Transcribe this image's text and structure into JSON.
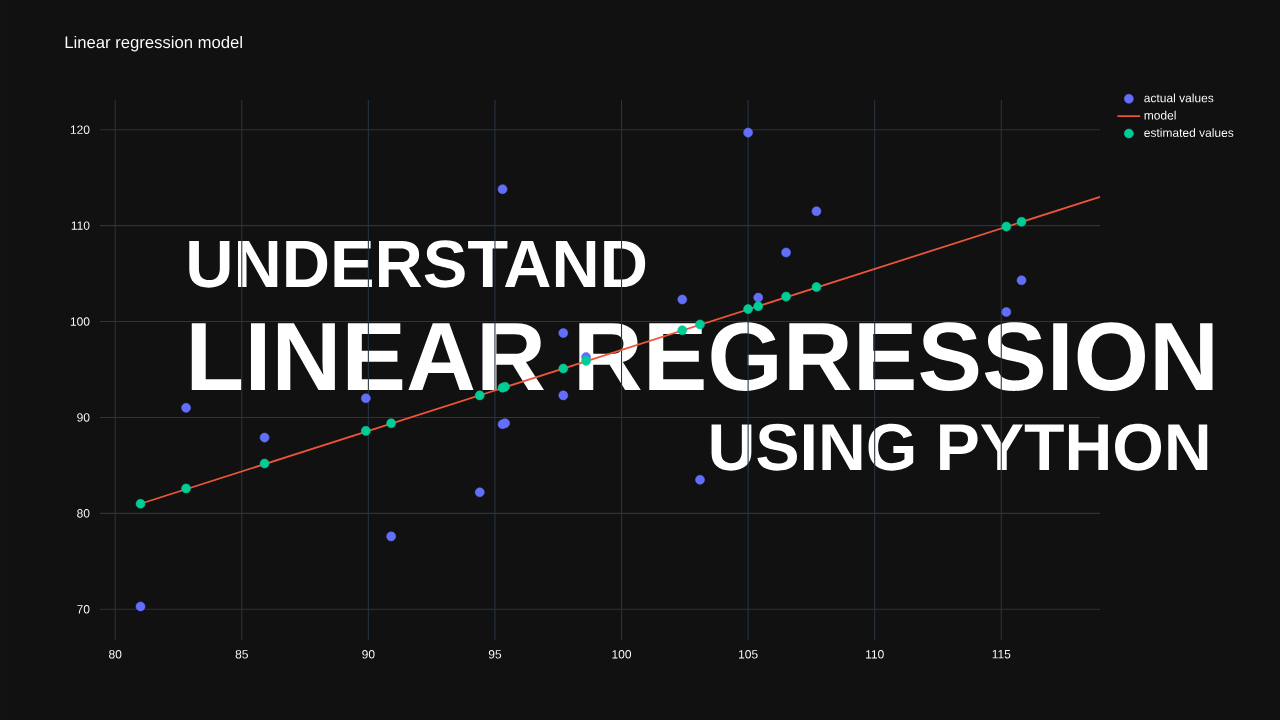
{
  "chart_data": {
    "type": "scatter",
    "title": "Linear regression model",
    "annotations": [
      "UNDERSTAND",
      "LINEAR REGRESSION",
      "USING PYTHON"
    ],
    "xlim": [
      79.4,
      118.9
    ],
    "ylim": [
      66.8,
      123.1
    ],
    "xticks": [
      80,
      85,
      90,
      95,
      100,
      105,
      110,
      115
    ],
    "yticks": [
      70,
      80,
      90,
      100,
      110,
      120
    ],
    "grid": true,
    "legend": "top right",
    "series": [
      {
        "name": "actual values",
        "marker": "circle",
        "color": "#636efa",
        "x": [
          81,
          82.8,
          85.9,
          89.9,
          90.9,
          94.4,
          95.3,
          95.3,
          95.4,
          97.7,
          97.7,
          98.6,
          102.4,
          103.1,
          105.0,
          105.4,
          106.5,
          107.7,
          115.2,
          115.8
        ],
        "values": [
          70.3,
          91.0,
          87.9,
          92.0,
          77.6,
          82.2,
          113.8,
          89.3,
          89.4,
          98.8,
          92.3,
          96.3,
          102.3,
          83.5,
          119.7,
          102.5,
          107.2,
          111.5,
          101.0,
          104.3
        ]
      },
      {
        "name": "model",
        "type": "line",
        "marker": "none",
        "color": "#ef553b",
        "x": [
          81,
          118.9
        ],
        "values": [
          81.0,
          113.0
        ]
      },
      {
        "name": "estimated values",
        "marker": "circle",
        "color": "#00cc96",
        "x": [
          81,
          82.8,
          85.9,
          89.9,
          90.9,
          94.4,
          95.3,
          95.4,
          97.7,
          98.6,
          102.4,
          103.1,
          105.0,
          105.4,
          106.5,
          107.7,
          115.2,
          115.8
        ],
        "values": [
          81.0,
          82.6,
          85.2,
          88.6,
          89.4,
          92.3,
          93.1,
          93.2,
          95.1,
          95.9,
          99.1,
          99.7,
          101.3,
          101.6,
          102.6,
          103.6,
          109.9,
          110.4
        ]
      }
    ]
  }
}
